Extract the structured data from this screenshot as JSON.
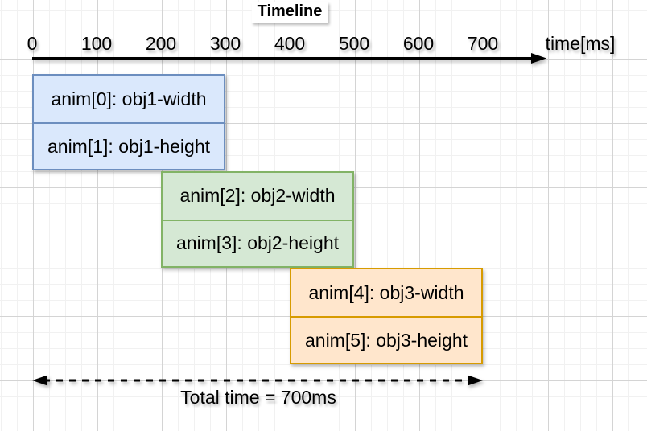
{
  "diagram": {
    "title": "Timeline",
    "axis": {
      "unit_label": "time[ms]",
      "tick_values": [
        0,
        100,
        200,
        300,
        400,
        500,
        600,
        700
      ],
      "min_ms": 0,
      "max_ms": 700
    },
    "groups": [
      {
        "name": "obj1",
        "fill": "#dae8fc",
        "stroke": "#6c8ebf",
        "start_ms": 0,
        "end_ms": 300,
        "rows": [
          {
            "label": "anim[0]: obj1-width"
          },
          {
            "label": "anim[1]: obj1-height"
          }
        ]
      },
      {
        "name": "obj2",
        "fill": "#d5e8d4",
        "stroke": "#82b366",
        "start_ms": 200,
        "end_ms": 500,
        "rows": [
          {
            "label": "anim[2]: obj2-width"
          },
          {
            "label": "anim[3]: obj2-height"
          }
        ]
      },
      {
        "name": "obj3",
        "fill": "#ffe6cc",
        "stroke": "#d79b00",
        "start_ms": 400,
        "end_ms": 700,
        "rows": [
          {
            "label": "anim[4]: obj3-width"
          },
          {
            "label": "anim[5]: obj3-height"
          }
        ]
      }
    ],
    "total": {
      "label": "Total time = 700ms",
      "start_ms": 0,
      "end_ms": 700
    },
    "colors": {
      "axis": "#000000",
      "grid_major": "#d4d4d4",
      "grid_minor": "#f1f1f1",
      "background": "#ffffff"
    }
  },
  "chart_data": {
    "type": "bar",
    "orientation": "horizontal-gantt",
    "title": "Timeline",
    "xlabel": "time[ms]",
    "xlim": [
      0,
      700
    ],
    "x_ticks": [
      0,
      100,
      200,
      300,
      400,
      500,
      600,
      700
    ],
    "series": [
      {
        "name": "anim[0]: obj1-width",
        "start": 0,
        "end": 300,
        "color": "#dae8fc"
      },
      {
        "name": "anim[1]: obj1-height",
        "start": 0,
        "end": 300,
        "color": "#dae8fc"
      },
      {
        "name": "anim[2]: obj2-width",
        "start": 200,
        "end": 500,
        "color": "#d5e8d4"
      },
      {
        "name": "anim[3]: obj2-height",
        "start": 200,
        "end": 500,
        "color": "#d5e8d4"
      },
      {
        "name": "anim[4]: obj3-width",
        "start": 400,
        "end": 700,
        "color": "#ffe6cc"
      },
      {
        "name": "anim[5]: obj3-height",
        "start": 400,
        "end": 700,
        "color": "#ffe6cc"
      }
    ],
    "annotations": [
      "Total time = 700ms"
    ]
  }
}
